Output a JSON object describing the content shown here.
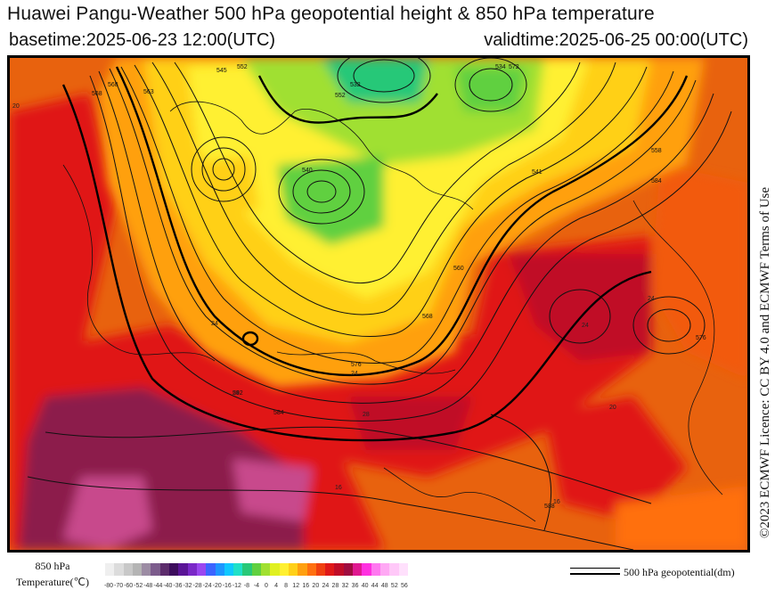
{
  "header": {
    "title": "Huawei Pangu-Weather 500 hPa geopotential height & 850 hPa temperature",
    "basetime": "basetime:2025-06-23 12:00(UTC)",
    "validtime": "validtime:2025-06-25 00:00(UTC)"
  },
  "credit": "©2023 ECMWF Licence: CC BY 4.0 and ECMWF Terms of Use",
  "legend": {
    "temperature_label_line1": "850 hPa",
    "temperature_label_line2": "Temperature(℃)",
    "ticks": [
      "-80",
      "-70",
      "-60",
      "-52",
      "-48",
      "-44",
      "-40",
      "-36",
      "-32",
      "-28",
      "-24",
      "-20",
      "-16",
      "-12",
      "-8",
      "-4",
      "0",
      "4",
      "8",
      "12",
      "16",
      "20",
      "24",
      "28",
      "32",
      "36",
      "40",
      "44",
      "48",
      "52",
      "56"
    ],
    "colors": [
      "#efefef",
      "#dcdcdc",
      "#c8c8c8",
      "#b4b4b4",
      "#9c8ca4",
      "#7c5c8c",
      "#5c2c6c",
      "#3c0c5c",
      "#5a1496",
      "#7a28c8",
      "#9a46f0",
      "#3c64ff",
      "#1e96ff",
      "#10c8ff",
      "#20e0c8",
      "#28c878",
      "#60d040",
      "#a0e030",
      "#e0f020",
      "#fff030",
      "#ffd018",
      "#ffa010",
      "#ff7010",
      "#f04010",
      "#e01818",
      "#c00c28",
      "#a00c40",
      "#e01890",
      "#ff30e0",
      "#ff78f0",
      "#ffa8f4",
      "#ffc8f8",
      "#ffe0fc"
    ],
    "geopotential_label": "500 hPa geopotential(dm)"
  },
  "map": {
    "contour_labels": [
      "545",
      "552",
      "563",
      "568",
      "568",
      "572",
      "552",
      "532",
      "534",
      "540",
      "541",
      "558",
      "568",
      "560",
      "576",
      "576",
      "584",
      "584",
      "588",
      "592"
    ],
    "temperature_labels": [
      "28",
      "24",
      "24",
      "20",
      "24",
      "20",
      "16",
      "24",
      "16",
      "24"
    ]
  },
  "colors": {
    "frame": "#000000",
    "hot": "#e01818",
    "very_hot": "#a00c40",
    "warm": "#ff7010",
    "mild": "#ffd018",
    "cool": "#60d040"
  }
}
